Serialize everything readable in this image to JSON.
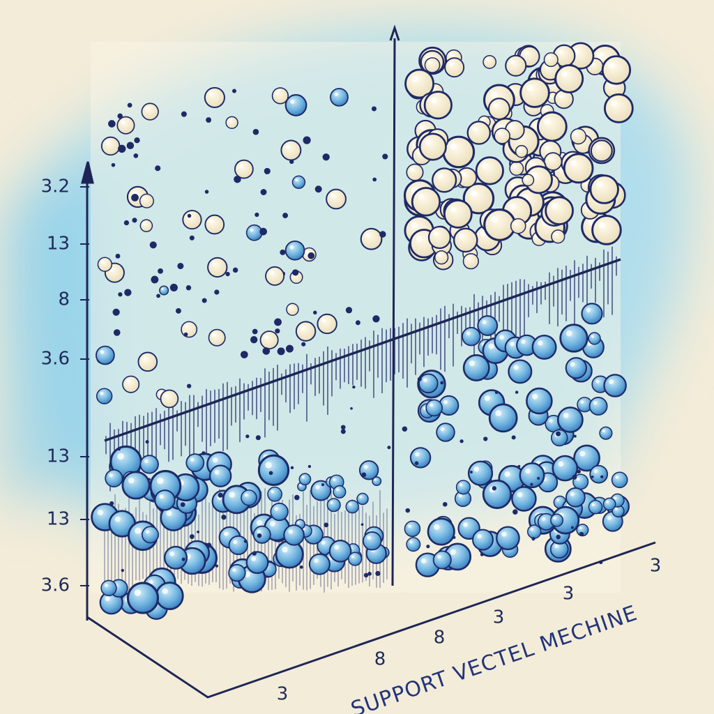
{
  "y_axis_labels": [
    "3.2",
    "13",
    "8",
    "3.6",
    "13",
    "13",
    "3.6"
  ],
  "x_axis_labels": [
    "3",
    "3",
    "3",
    "8",
    "8",
    "3"
  ],
  "caption": "SUPPORT VECTEL MECHINE"
}
